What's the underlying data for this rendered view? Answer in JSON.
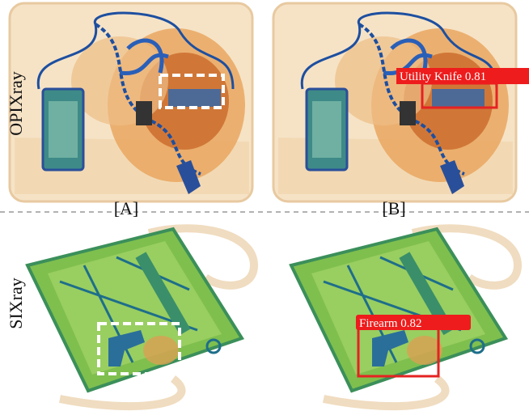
{
  "rows": [
    {
      "label": "OPIXray",
      "detection": "Utility Knife 0.81"
    },
    {
      "label": "SIXray",
      "detection": "Firearm 0.82"
    }
  ],
  "columns": [
    "[A]",
    "[B]"
  ]
}
